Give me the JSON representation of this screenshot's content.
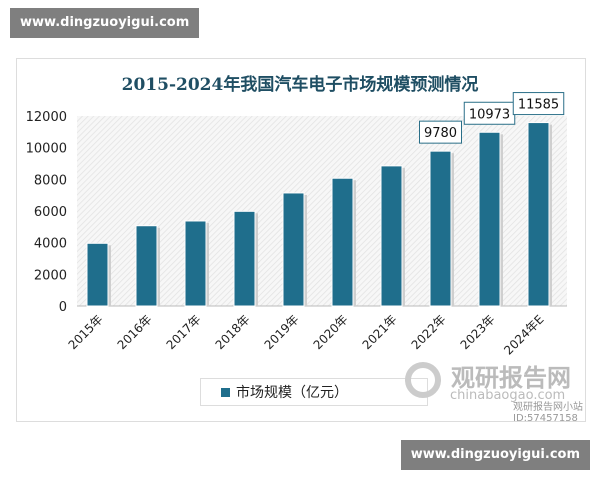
{
  "watermarks": {
    "top": "www.dingzuoyigui.com",
    "bottom": "www.dingzuoyigui.com"
  },
  "logo": {
    "cn": "观研报告网",
    "en": "chinabaogao.com",
    "account": "观研报告网小站",
    "id": "ID:57457158"
  },
  "chart_data": {
    "type": "bar",
    "title": "2015-2024年我国汽车电子市场规模预测情况",
    "categories": [
      "2015年",
      "2016年",
      "2017年",
      "2018年",
      "2019年",
      "2020年",
      "2021年",
      "2022年",
      "2023年",
      "2024年E"
    ],
    "series": [
      {
        "name": "市场规模（亿元）",
        "values": [
          3960,
          5070,
          5370,
          5980,
          7140,
          8070,
          8850,
          9780,
          10973,
          11585
        ],
        "color": "#1f6e8c"
      }
    ],
    "data_labels": {
      "7": "9780",
      "8": "10973",
      "9": "11585"
    },
    "yticks": [
      0,
      2000,
      4000,
      6000,
      8000,
      10000,
      12000
    ],
    "ylim": [
      0,
      12000
    ],
    "grid": false,
    "legend": "bottom"
  }
}
